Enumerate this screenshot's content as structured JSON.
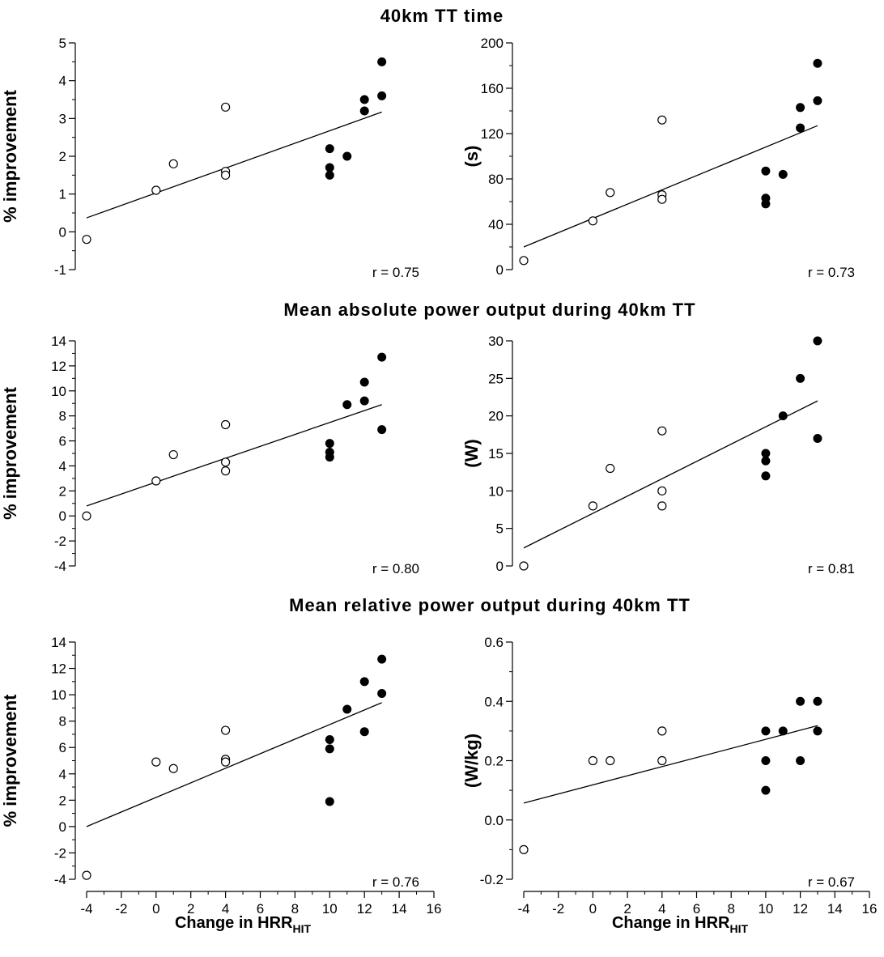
{
  "section_titles": [
    "40km TT time",
    "Mean absolute power output during 40km TT",
    "Mean relative power output during 40km TT"
  ],
  "x_axis": {
    "label_main": "Change in HRR",
    "label_sub": "HIT",
    "ticks": [
      -4,
      -2,
      0,
      2,
      4,
      6,
      8,
      10,
      12,
      14,
      16
    ],
    "range": [
      -4,
      16
    ]
  },
  "chart_data": [
    {
      "type": "scatter",
      "title": "40km TT time",
      "ylabel": "% improvement",
      "ylim": [
        -1,
        5
      ],
      "yticks": [
        -1,
        0,
        1,
        2,
        3,
        4,
        5
      ],
      "y_minor": true,
      "r_label": "r = 0.75",
      "open": [
        [
          -4,
          -0.2
        ],
        [
          0,
          1.1
        ],
        [
          1,
          1.8
        ],
        [
          4,
          3.3
        ],
        [
          4,
          1.6
        ],
        [
          4,
          1.5
        ]
      ],
      "filled": [
        [
          10,
          2.2
        ],
        [
          10,
          1.7
        ],
        [
          10,
          1.5
        ],
        [
          11,
          2.0
        ],
        [
          12,
          3.5
        ],
        [
          12,
          3.2
        ],
        [
          13,
          4.5
        ],
        [
          13,
          3.6
        ]
      ],
      "fit_line": [
        [
          -4,
          0.37
        ],
        [
          13,
          3.17
        ]
      ]
    },
    {
      "type": "scatter",
      "title": "40km TT time",
      "ylabel": "(s)",
      "ylim": [
        0,
        200
      ],
      "yticks": [
        0,
        40,
        80,
        120,
        160,
        200
      ],
      "y_minor": true,
      "r_label": "r = 0.73",
      "open": [
        [
          -4,
          8
        ],
        [
          0,
          43
        ],
        [
          1,
          68
        ],
        [
          4,
          132
        ],
        [
          4,
          66
        ],
        [
          4,
          62
        ]
      ],
      "filled": [
        [
          10,
          87
        ],
        [
          10,
          63
        ],
        [
          10,
          58
        ],
        [
          11,
          84
        ],
        [
          12,
          143
        ],
        [
          12,
          125
        ],
        [
          13,
          182
        ],
        [
          13,
          149
        ]
      ],
      "fit_line": [
        [
          -4,
          20
        ],
        [
          13,
          127
        ]
      ]
    },
    {
      "type": "scatter",
      "title": "Mean absolute power output during 40km TT",
      "ylabel": "% improvement",
      "ylim": [
        -4,
        14
      ],
      "yticks": [
        -4,
        -2,
        0,
        2,
        4,
        6,
        8,
        10,
        12,
        14
      ],
      "y_minor": true,
      "r_label": "r = 0.80",
      "open": [
        [
          -4,
          0.0
        ],
        [
          0,
          2.8
        ],
        [
          1,
          4.9
        ],
        [
          4,
          7.3
        ],
        [
          4,
          4.3
        ],
        [
          4,
          3.6
        ]
      ],
      "filled": [
        [
          10,
          5.8
        ],
        [
          10,
          5.1
        ],
        [
          10,
          4.7
        ],
        [
          11,
          8.9
        ],
        [
          12,
          10.7
        ],
        [
          12,
          9.2
        ],
        [
          13,
          12.7
        ],
        [
          13,
          6.9
        ]
      ],
      "fit_line": [
        [
          -4,
          0.8
        ],
        [
          13,
          8.9
        ]
      ]
    },
    {
      "type": "scatter",
      "title": "Mean absolute power output during 40km TT",
      "ylabel": "(W)",
      "ylim": [
        0,
        30
      ],
      "yticks": [
        0,
        5,
        10,
        15,
        20,
        25,
        30
      ],
      "y_minor": false,
      "r_label": "r = 0.81",
      "open": [
        [
          -4,
          0
        ],
        [
          0,
          8
        ],
        [
          1,
          13
        ],
        [
          4,
          18
        ],
        [
          4,
          10
        ],
        [
          4,
          8
        ]
      ],
      "filled": [
        [
          10,
          15
        ],
        [
          10,
          14
        ],
        [
          10,
          12
        ],
        [
          11,
          20
        ],
        [
          12,
          25
        ],
        [
          13,
          30
        ],
        [
          13,
          17
        ]
      ],
      "fit_line": [
        [
          -4,
          2.4
        ],
        [
          13,
          22.0
        ]
      ]
    },
    {
      "type": "scatter",
      "title": "Mean relative power output during 40km TT",
      "ylabel": "% improvement",
      "ylim": [
        -4,
        14
      ],
      "yticks": [
        -4,
        -2,
        0,
        2,
        4,
        6,
        8,
        10,
        12,
        14
      ],
      "y_minor": true,
      "r_label": "r = 0.76",
      "open": [
        [
          -4,
          -3.7
        ],
        [
          0,
          4.9
        ],
        [
          1,
          4.4
        ],
        [
          4,
          7.3
        ],
        [
          4,
          5.1
        ],
        [
          4,
          4.9
        ]
      ],
      "filled": [
        [
          10,
          6.6
        ],
        [
          10,
          5.9
        ],
        [
          10,
          1.9
        ],
        [
          11,
          8.9
        ],
        [
          12,
          11.0
        ],
        [
          12,
          7.2
        ],
        [
          13,
          12.7
        ],
        [
          13,
          10.1
        ]
      ],
      "fit_line": [
        [
          -4,
          0.0
        ],
        [
          13,
          9.4
        ]
      ]
    },
    {
      "type": "scatter",
      "title": "Mean relative power output during 40km TT",
      "ylabel": "(W/kg)",
      "ylim": [
        -0.2,
        0.6
      ],
      "yticks": [
        -0.2,
        0.0,
        0.2,
        0.4,
        0.6
      ],
      "ytick_labels": [
        "-0.2",
        "0.0",
        "0.2",
        "0.4",
        "0.6"
      ],
      "y_minor": true,
      "r_label": "r = 0.67",
      "open": [
        [
          -4,
          -0.1
        ],
        [
          0,
          0.2
        ],
        [
          1,
          0.2
        ],
        [
          4,
          0.3
        ],
        [
          4,
          0.2
        ]
      ],
      "filled": [
        [
          10,
          0.3
        ],
        [
          10,
          0.2
        ],
        [
          10,
          0.1
        ],
        [
          11,
          0.3
        ],
        [
          12,
          0.4
        ],
        [
          12,
          0.2
        ],
        [
          13,
          0.4
        ],
        [
          13,
          0.3
        ]
      ],
      "fit_line": [
        [
          -4,
          0.057
        ],
        [
          13,
          0.318
        ]
      ]
    }
  ]
}
